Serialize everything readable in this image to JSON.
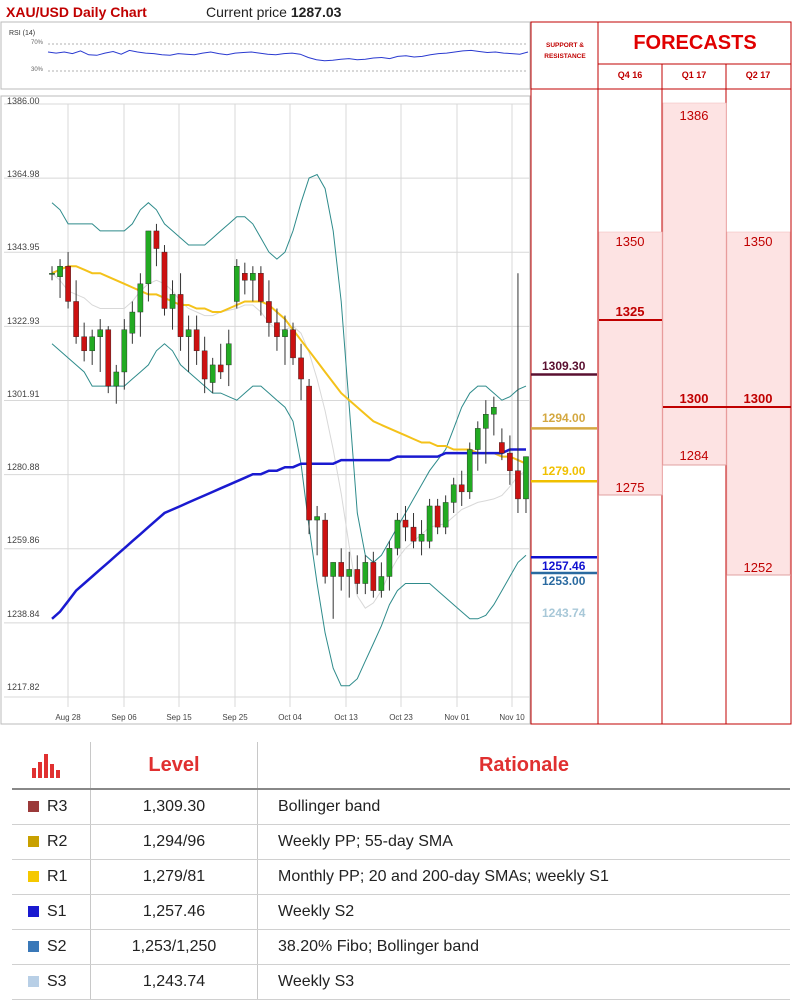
{
  "header": {
    "title": "XAU/USD Daily Chart",
    "price_label": "Current price",
    "price_value": "1287.03"
  },
  "rsi": {
    "label": "RSI (14)",
    "levels": [
      "70%",
      "30%"
    ]
  },
  "support_resistance": {
    "heading_line1": "SUPPORT &",
    "heading_line2": "RESISTANCE",
    "values": [
      {
        "label": "1309.30",
        "color": "#5a1030"
      },
      {
        "label": "1294.00",
        "color": "#d4a840"
      },
      {
        "label": "1279.00",
        "color": "#f0c000"
      },
      {
        "label": "1257.46",
        "color": "#1010d0"
      },
      {
        "label": "1253.00",
        "color": "#2a6aa0"
      },
      {
        "label": "1243.74",
        "color": "#a8c8d8"
      }
    ]
  },
  "forecasts": {
    "title": "FORECASTS",
    "columns": [
      {
        "name": "Q4 16",
        "high": "1350",
        "mid": "1325",
        "low": "1275"
      },
      {
        "name": "Q1 17",
        "high": "1386",
        "mid": "1300",
        "low": "1284"
      },
      {
        "name": "Q2 17",
        "high": "1350",
        "mid": "1300",
        "low": "1252"
      }
    ]
  },
  "levels_table": {
    "header_level": "Level",
    "header_rationale": "Rationale",
    "rows": [
      {
        "name": "R3",
        "level": "1,309.30",
        "rationale": "Bollinger band",
        "color": "#9b3a3a"
      },
      {
        "name": "R2",
        "level": "1,294/96",
        "rationale": "Weekly PP; 55-day SMA",
        "color": "#c8a000"
      },
      {
        "name": "R1",
        "level": "1,279/81",
        "rationale": "Monthly PP; 20 and 200-day SMAs; weekly S1",
        "color": "#f5c800"
      },
      {
        "name": "S1",
        "level": "1,257.46",
        "rationale": "Weekly S2",
        "color": "#1a1ad0"
      },
      {
        "name": "S2",
        "level": "1,253/1,250",
        "rationale": "38.20% Fibo; Bollinger band",
        "color": "#3a78b8"
      },
      {
        "name": "S3",
        "level": "1,243.74",
        "rationale": "Weekly S3",
        "color": "#b8cfe6"
      }
    ]
  },
  "chart_data": {
    "type": "candlestick",
    "y_ticks": [
      "1386.00",
      "1364.98",
      "1343.95",
      "1322.93",
      "1301.91",
      "1280.88",
      "1259.86",
      "1238.84",
      "1217.82"
    ],
    "x_ticks": [
      "Aug 28",
      "Sep 06",
      "Sep 15",
      "Sep 25",
      "Oct 04",
      "Oct 13",
      "Oct 23",
      "Nov 01",
      "Nov 10"
    ],
    "ylim": [
      1217.82,
      1386.0
    ],
    "candles": [
      [
        1338,
        1340,
        1336,
        1338
      ],
      [
        1337,
        1342,
        1331,
        1340
      ],
      [
        1340,
        1344,
        1328,
        1330
      ],
      [
        1330,
        1336,
        1318,
        1320
      ],
      [
        1320,
        1324,
        1313,
        1316
      ],
      [
        1316,
        1322,
        1312,
        1320
      ],
      [
        1320,
        1325,
        1310,
        1322
      ],
      [
        1322,
        1323,
        1304,
        1306
      ],
      [
        1306,
        1312,
        1301,
        1310
      ],
      [
        1310,
        1325,
        1305,
        1322
      ],
      [
        1321,
        1330,
        1318,
        1327
      ],
      [
        1327,
        1338,
        1320,
        1335
      ],
      [
        1335,
        1350,
        1330,
        1350
      ],
      [
        1350,
        1352,
        1340,
        1345
      ],
      [
        1344,
        1346,
        1326,
        1328
      ],
      [
        1328,
        1336,
        1322,
        1332
      ],
      [
        1332,
        1338,
        1316,
        1320
      ],
      [
        1320,
        1326,
        1310,
        1322
      ],
      [
        1322,
        1326,
        1312,
        1316
      ],
      [
        1316,
        1320,
        1304,
        1308
      ],
      [
        1307,
        1314,
        1304,
        1312
      ],
      [
        1312,
        1318,
        1308,
        1310
      ],
      [
        1312,
        1322,
        1306,
        1318
      ],
      [
        1330,
        1342,
        1328,
        1340
      ],
      [
        1338,
        1341,
        1332,
        1336
      ],
      [
        1336,
        1340,
        1330,
        1338
      ],
      [
        1338,
        1340,
        1326,
        1330
      ],
      [
        1330,
        1336,
        1320,
        1324
      ],
      [
        1324,
        1328,
        1316,
        1320
      ],
      [
        1320,
        1326,
        1312,
        1322
      ],
      [
        1322,
        1324,
        1312,
        1314
      ],
      [
        1314,
        1318,
        1302,
        1308
      ],
      [
        1306,
        1308,
        1264,
        1268
      ],
      [
        1268,
        1272,
        1258,
        1269
      ],
      [
        1268,
        1270,
        1250,
        1252
      ],
      [
        1252,
        1256,
        1240,
        1256
      ],
      [
        1256,
        1260,
        1248,
        1252
      ],
      [
        1252,
        1259,
        1246,
        1254
      ],
      [
        1254,
        1258,
        1247,
        1250
      ],
      [
        1250,
        1258,
        1247,
        1256
      ],
      [
        1256,
        1259,
        1246,
        1248
      ],
      [
        1248,
        1256,
        1246,
        1252
      ],
      [
        1252,
        1262,
        1248,
        1260
      ],
      [
        1260,
        1270,
        1258,
        1268
      ],
      [
        1268,
        1272,
        1262,
        1266
      ],
      [
        1266,
        1270,
        1260,
        1262
      ],
      [
        1262,
        1268,
        1258,
        1264
      ],
      [
        1262,
        1274,
        1260,
        1272
      ],
      [
        1272,
        1274,
        1264,
        1266
      ],
      [
        1266,
        1275,
        1264,
        1273
      ],
      [
        1273,
        1280,
        1270,
        1278
      ],
      [
        1278,
        1282,
        1272,
        1276
      ],
      [
        1276,
        1290,
        1274,
        1288
      ],
      [
        1288,
        1296,
        1282,
        1294
      ],
      [
        1294,
        1302,
        1284,
        1298
      ],
      [
        1298,
        1303,
        1292,
        1300
      ],
      [
        1290,
        1294,
        1285,
        1287
      ],
      [
        1287,
        1292,
        1278,
        1282
      ],
      [
        1282,
        1338,
        1270,
        1274
      ],
      [
        1274,
        1286,
        1270,
        1286
      ]
    ],
    "series": [
      {
        "name": "55-day SMA",
        "color": "#f4c21a"
      },
      {
        "name": "200-day SMA",
        "color": "#1a1ad0"
      },
      {
        "name": "Bollinger band",
        "color": "#2e8b8b"
      }
    ]
  }
}
